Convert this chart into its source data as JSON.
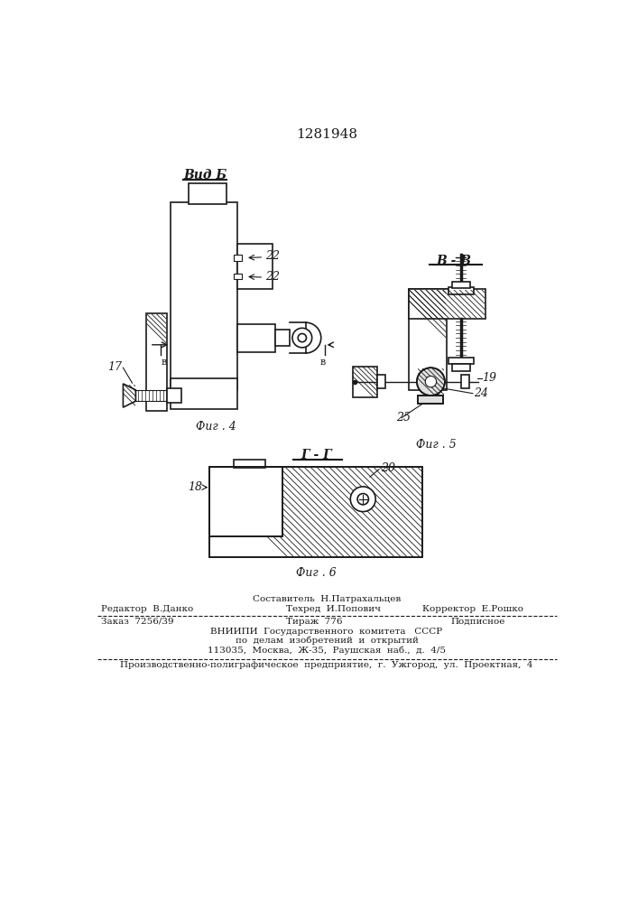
{
  "patent_number": "1281948",
  "bg_color": "#ffffff",
  "line_color": "#1a1a1a",
  "fig4_label": "Фиг . 4",
  "fig5_label": "Фиг . 5",
  "fig6_label": "Фиг . 6",
  "vid_b_label": "Вид Б",
  "section_bb_label": "В - В",
  "section_gg_label": "Г - Г",
  "footer": {
    "line1_center": "Составитель  Н.Патрахальцев",
    "line1_left": "Редактор  В.Данко",
    "line1_right_label": "Техред  И.Попович",
    "line1_right": "Корректор  Е.Рошко",
    "line2_left": "Заказ  7256/39",
    "line2_center": "Тираж  776",
    "line2_right": "Подписное",
    "line3": "ВНИИПИ  Государственного  комитета   СССР",
    "line4": "по  делам  изобретений  и  открытий",
    "line5": "113035,  Москва,  Ж-35,  Раушская  наб.,  д.  4/5",
    "line6": "Производственно-полиграфическое  предприятие,  г.  Ужгород,  ул.  Проектная,  4"
  }
}
